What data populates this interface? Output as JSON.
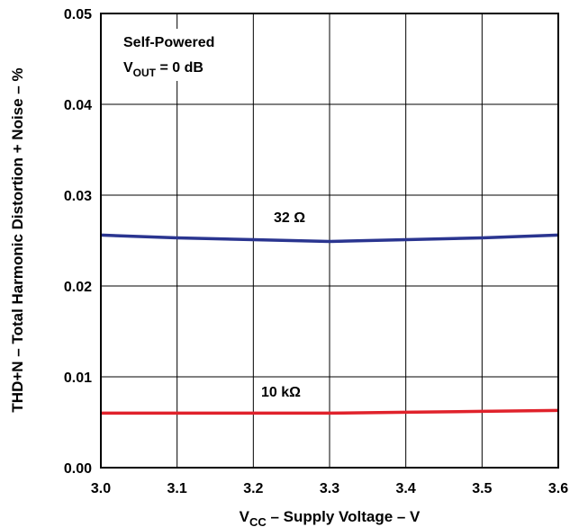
{
  "chart_data": {
    "type": "line",
    "xlabel": {
      "prefix": "V",
      "sub": "CC",
      "suffix": " – Supply Voltage – V"
    },
    "ylabel": "THD+N – Total Harmonic Distortion + Noise – %",
    "xlim": [
      3.0,
      3.6
    ],
    "ylim": [
      0.0,
      0.05
    ],
    "x_ticks": [
      "3.0",
      "3.1",
      "3.2",
      "3.3",
      "3.4",
      "3.5",
      "3.6"
    ],
    "y_ticks": [
      "0.00",
      "0.01",
      "0.02",
      "0.03",
      "0.04",
      "0.05"
    ],
    "grid": true,
    "conditions": {
      "line1": "Self-Powered",
      "line2_prefix": "V",
      "line2_sub": "OUT",
      "line2_suffix": " = 0 dB"
    },
    "series": [
      {
        "name": "32 Ω",
        "color": "#2a3590",
        "x": [
          3.0,
          3.1,
          3.2,
          3.3,
          3.4,
          3.5,
          3.6
        ],
        "values": [
          0.0256,
          0.0253,
          0.0251,
          0.0249,
          0.0251,
          0.0253,
          0.0256
        ]
      },
      {
        "name": "10 kΩ",
        "color": "#e0222b",
        "x": [
          3.0,
          3.1,
          3.2,
          3.3,
          3.4,
          3.5,
          3.6
        ],
        "values": [
          0.006,
          0.006,
          0.006,
          0.006,
          0.0061,
          0.0062,
          0.0063
        ]
      }
    ]
  }
}
